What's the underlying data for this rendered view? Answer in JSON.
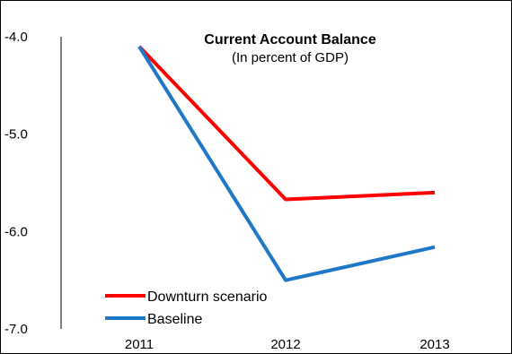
{
  "chart_data": {
    "type": "line",
    "title": "Current Account Balance",
    "subtitle": "(In percent of GDP)",
    "xlabel": "",
    "ylabel": "",
    "categories": [
      "2011",
      "2012",
      "2013"
    ],
    "ylim": [
      -7.0,
      -4.0
    ],
    "yticks": [
      "-4.0",
      "-5.0",
      "-6.0",
      "-7.0"
    ],
    "ytick_values": [
      -4.0,
      -5.0,
      -6.0,
      -7.0
    ],
    "grid": false,
    "legend_position": "bottom-left",
    "series": [
      {
        "name": "Downturn scenario",
        "color": "#ff0000",
        "values": [
          -4.1,
          -5.67,
          -5.6
        ]
      },
      {
        "name": "Baseline",
        "color": "#1f77c8",
        "values": [
          -4.1,
          -6.5,
          -6.16
        ]
      }
    ]
  }
}
